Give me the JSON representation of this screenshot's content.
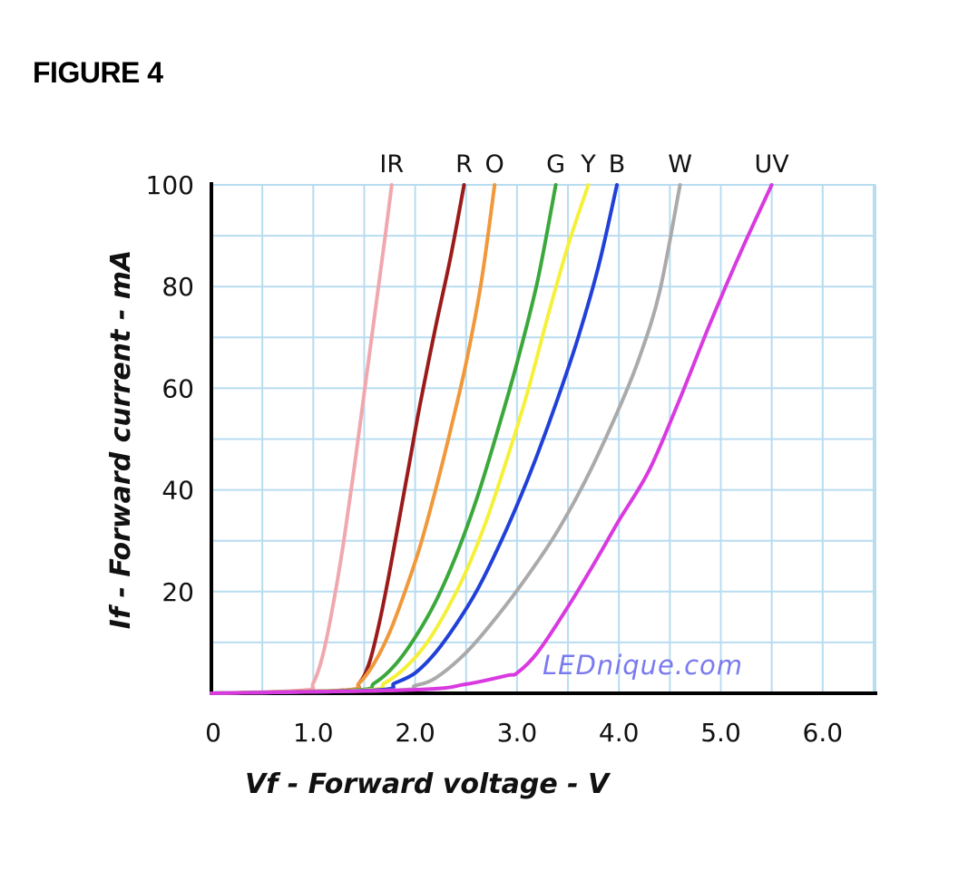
{
  "figure": {
    "label": "FIGURE 4"
  },
  "watermark": {
    "text": "LEDnique.com",
    "color": "#7a7af0"
  },
  "chart_data": {
    "type": "line",
    "title": "",
    "xlabel": "Vf - Forward voltage - V",
    "ylabel": "If - Forward current - mA",
    "xlim": [
      0,
      6.5
    ],
    "ylim": [
      0,
      100
    ],
    "x_ticks": [
      {
        "value": 0,
        "label": "0"
      },
      {
        "value": 1,
        "label": "1.0"
      },
      {
        "value": 2,
        "label": "2.0"
      },
      {
        "value": 3,
        "label": "3.0"
      },
      {
        "value": 4,
        "label": "4.0"
      },
      {
        "value": 5,
        "label": "5.0"
      },
      {
        "value": 6,
        "label": "6.0"
      }
    ],
    "y_ticks": [
      {
        "value": 20,
        "label": "20"
      },
      {
        "value": 40,
        "label": "40"
      },
      {
        "value": 60,
        "label": "60"
      },
      {
        "value": 80,
        "label": "80"
      },
      {
        "value": 100,
        "label": "100"
      }
    ],
    "grid": true,
    "grid_step_x": 0.5,
    "grid_step_y": 10,
    "grid_color": "#b8dcf0",
    "series": [
      {
        "name": "IR",
        "color": "#f0a8ae",
        "points": [
          [
            0,
            0
          ],
          [
            0.9,
            0.6
          ],
          [
            1.0,
            2
          ],
          [
            1.1,
            8
          ],
          [
            1.2,
            18
          ],
          [
            1.3,
            30
          ],
          [
            1.4,
            44
          ],
          [
            1.5,
            59
          ],
          [
            1.6,
            74
          ],
          [
            1.7,
            89
          ],
          [
            1.77,
            100
          ]
        ]
      },
      {
        "name": "R",
        "color": "#9b1a1a",
        "points": [
          [
            0,
            0
          ],
          [
            1.3,
            0.6
          ],
          [
            1.45,
            2
          ],
          [
            1.55,
            6
          ],
          [
            1.65,
            14
          ],
          [
            1.75,
            24
          ],
          [
            1.85,
            35
          ],
          [
            1.95,
            46
          ],
          [
            2.05,
            57
          ],
          [
            2.2,
            72
          ],
          [
            2.35,
            86
          ],
          [
            2.48,
            100
          ]
        ]
      },
      {
        "name": "O",
        "color": "#f0983a",
        "points": [
          [
            0,
            0
          ],
          [
            1.3,
            0.6
          ],
          [
            1.45,
            2
          ],
          [
            1.6,
            6
          ],
          [
            1.75,
            12
          ],
          [
            1.9,
            20
          ],
          [
            2.05,
            29
          ],
          [
            2.2,
            40
          ],
          [
            2.35,
            52
          ],
          [
            2.5,
            65
          ],
          [
            2.65,
            81
          ],
          [
            2.78,
            100
          ]
        ]
      },
      {
        "name": "G",
        "color": "#3aa83a",
        "points": [
          [
            0,
            0
          ],
          [
            1.4,
            0.6
          ],
          [
            1.6,
            2
          ],
          [
            1.8,
            5.5
          ],
          [
            2.0,
            11
          ],
          [
            2.2,
            18
          ],
          [
            2.4,
            27
          ],
          [
            2.6,
            38
          ],
          [
            2.8,
            51
          ],
          [
            3.0,
            65
          ],
          [
            3.2,
            81
          ],
          [
            3.38,
            100
          ]
        ]
      },
      {
        "name": "Y",
        "color": "#f5f03a",
        "points": [
          [
            0,
            0
          ],
          [
            1.5,
            0.6
          ],
          [
            1.7,
            2
          ],
          [
            1.9,
            5
          ],
          [
            2.1,
            9.5
          ],
          [
            2.3,
            16
          ],
          [
            2.5,
            24
          ],
          [
            2.7,
            34
          ],
          [
            2.9,
            46
          ],
          [
            3.1,
            59
          ],
          [
            3.3,
            74
          ],
          [
            3.5,
            88
          ],
          [
            3.7,
            100
          ]
        ]
      },
      {
        "name": "B",
        "color": "#2040d8",
        "points": [
          [
            0,
            0
          ],
          [
            1.6,
            0.6
          ],
          [
            1.8,
            2
          ],
          [
            2.0,
            4
          ],
          [
            2.2,
            8
          ],
          [
            2.4,
            13.5
          ],
          [
            2.6,
            20
          ],
          [
            2.8,
            28
          ],
          [
            3.0,
            37
          ],
          [
            3.2,
            47
          ],
          [
            3.4,
            58
          ],
          [
            3.6,
            70
          ],
          [
            3.8,
            84
          ],
          [
            3.98,
            100
          ]
        ]
      },
      {
        "name": "W",
        "color": "#aaaaaa",
        "points": [
          [
            0,
            0
          ],
          [
            1.8,
            0.6
          ],
          [
            2.0,
            1.5
          ],
          [
            2.2,
            3
          ],
          [
            2.5,
            8
          ],
          [
            2.8,
            15
          ],
          [
            3.1,
            23
          ],
          [
            3.4,
            32
          ],
          [
            3.7,
            43
          ],
          [
            4.0,
            56
          ],
          [
            4.2,
            66
          ],
          [
            4.4,
            79
          ],
          [
            4.6,
            100
          ]
        ]
      },
      {
        "name": "UV",
        "color": "#d83ae0",
        "points": [
          [
            0,
            0
          ],
          [
            2.0,
            0.7
          ],
          [
            2.5,
            1.8
          ],
          [
            2.9,
            3.5
          ],
          [
            3.0,
            4
          ],
          [
            3.2,
            8
          ],
          [
            3.5,
            17
          ],
          [
            3.8,
            27
          ],
          [
            4.0,
            34
          ],
          [
            4.3,
            44
          ],
          [
            4.6,
            58
          ],
          [
            4.9,
            73
          ],
          [
            5.2,
            87
          ],
          [
            5.5,
            100
          ]
        ]
      }
    ]
  }
}
